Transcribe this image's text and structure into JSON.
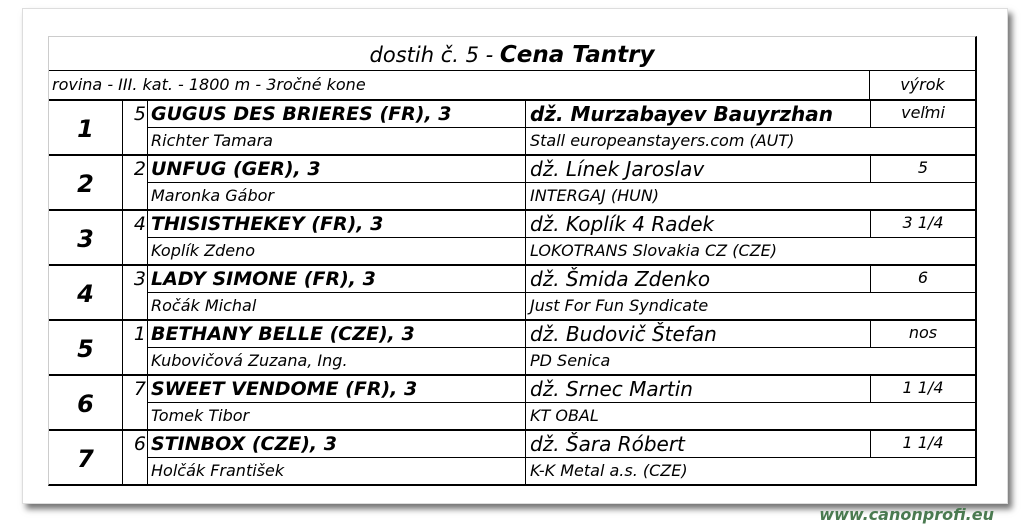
{
  "title_prefix": "dostih č. 5 - ",
  "title_name": "Cena Tantry",
  "conditions": "rovina - III. kat. - 1800 m - 3ročné kone",
  "margin_header": "výrok",
  "rows": [
    {
      "place": "1",
      "num": "5",
      "horse": "GUGUS DES BRIERES (FR), 3",
      "jockey": "dž. Murzabayev Bauyrzhan",
      "margin": "veľmi",
      "trainer": "Richter Tamara",
      "owner": "Stall europeanstayers.com (AUT)"
    },
    {
      "place": "2",
      "num": "2",
      "horse": "UNFUG (GER), 3",
      "jockey": "dž. Línek Jaroslav",
      "margin": "5",
      "trainer": "Maronka Gábor",
      "owner": "INTERGAJ (HUN)"
    },
    {
      "place": "3",
      "num": "4",
      "horse": "THISISTHEKEY (FR), 3",
      "jockey": "dž. Koplík 4 Radek",
      "margin": "3 1/4",
      "trainer": "Koplík Zdeno",
      "owner": "LOKOTRANS Slovakia CZ (CZE)"
    },
    {
      "place": "4",
      "num": "3",
      "horse": "LADY SIMONE (FR), 3",
      "jockey": "dž. Šmida Zdenko",
      "margin": "6",
      "trainer": "Ročák Michal",
      "owner": "Just For Fun Syndicate"
    },
    {
      "place": "5",
      "num": "1",
      "horse": "BETHANY BELLE (CZE), 3",
      "jockey": "dž. Budovič Štefan",
      "margin": "nos",
      "trainer": "Kubovičová Zuzana, Ing.",
      "owner": "PD Senica"
    },
    {
      "place": "6",
      "num": "7",
      "horse": "SWEET VENDOME (FR), 3",
      "jockey": "dž. Srnec Martin",
      "margin": "1 1/4",
      "trainer": "Tomek Tibor",
      "owner": "KT OBAL"
    },
    {
      "place": "7",
      "num": "6",
      "horse": "STINBOX (CZE), 3",
      "jockey": "dž. Šara Róbert",
      "margin": "1 1/4",
      "trainer": "Holčák František",
      "owner": "K-K Metal a.s. (CZE)"
    }
  ],
  "watermark": "www.canonprofi.eu"
}
